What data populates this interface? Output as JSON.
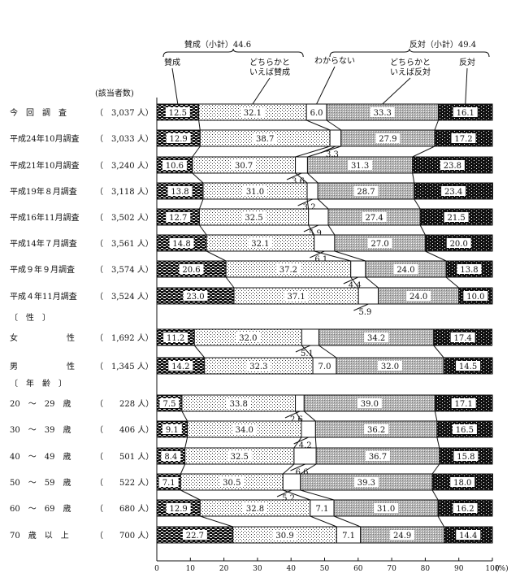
{
  "chart_data": {
    "type": "bar",
    "stacked": true,
    "orientation": "horizontal",
    "respondents_header": "(該当者数)",
    "group_labels": {
      "gender": "〔　性　〕",
      "age": "〔　年　齢　〕"
    },
    "x_tick_labels": [
      "0",
      "10",
      "20",
      "30",
      "40",
      "50",
      "60",
      "70",
      "80",
      "90",
      "100"
    ],
    "x_unit": "(%)",
    "xlim": [
      0,
      100
    ],
    "subtotals": {
      "approve": "賛成（小計）44.6",
      "oppose": "反対（小計）49.4"
    },
    "legend": [
      {
        "key": "approve",
        "text": "賛成"
      },
      {
        "key": "lean_approve",
        "text": "どちらかと\nいえば賛成"
      },
      {
        "key": "unsure",
        "text": "わからない"
      },
      {
        "key": "lean_oppose",
        "text": "どちらかと\nいえば反対"
      },
      {
        "key": "oppose",
        "text": "反対"
      }
    ],
    "series_names": [
      "賛成",
      "どちらかといえば賛成",
      "わからない",
      "どちらかといえば反対",
      "反対"
    ],
    "rows": [
      {
        "label": "今　回　調　査",
        "n": "（　3,037 人）",
        "values": [
          12.5,
          32.1,
          6.0,
          33.3,
          16.1
        ],
        "labels": [
          "12.5",
          "32.1",
          "6.0",
          "33.3",
          "16.1"
        ],
        "unsure_callout": "",
        "group": "survey"
      },
      {
        "label": "平成24年10月調査",
        "n": "（　3,033 人）",
        "values": [
          12.9,
          38.7,
          3.3,
          27.9,
          17.2
        ],
        "labels": [
          "12.9",
          "38.7",
          "3.3",
          "27.9",
          "17.2"
        ],
        "unsure_callout": "below",
        "group": "survey"
      },
      {
        "label": "平成21年10月調査",
        "n": "（　3,240 人）",
        "values": [
          10.6,
          30.7,
          3.6,
          31.3,
          23.8
        ],
        "labels": [
          "10.6",
          "30.7",
          "3.6",
          "31.3",
          "23.8"
        ],
        "unsure_callout": "below",
        "group": "survey"
      },
      {
        "label": "平成19年８月調査",
        "n": "（　3,118 人）",
        "values": [
          13.8,
          31.0,
          3.2,
          28.7,
          23.4
        ],
        "labels": [
          "13.8",
          "31.0",
          "3.2",
          "28.7",
          "23.4"
        ],
        "unsure_callout": "below",
        "group": "survey"
      },
      {
        "label": "平成16年11月調査",
        "n": "（　3,502 人）",
        "values": [
          12.7,
          32.5,
          5.9,
          27.4,
          21.5
        ],
        "labels": [
          "12.7",
          "32.5",
          "5.9",
          "27.4",
          "21.5"
        ],
        "unsure_callout": "below",
        "group": "survey"
      },
      {
        "label": "平成14年７月調査",
        "n": "（　3,561 人）",
        "values": [
          14.8,
          32.1,
          6.1,
          27.0,
          20.0
        ],
        "labels": [
          "14.8",
          "32.1",
          "6.1",
          "27.0",
          "20.0"
        ],
        "unsure_callout": "below",
        "group": "survey"
      },
      {
        "label": "平成９年９月調査",
        "n": "（　3,574 人）",
        "values": [
          20.6,
          37.2,
          4.4,
          24.0,
          13.8
        ],
        "labels": [
          "20.6",
          "37.2",
          "4.4",
          "24.0",
          "13.8"
        ],
        "unsure_callout": "below",
        "group": "survey"
      },
      {
        "label": "平成４年11月調査",
        "n": "（　3,524 人）",
        "values": [
          23.0,
          37.1,
          5.9,
          24.0,
          10.0
        ],
        "labels": [
          "23.0",
          "37.1",
          "5.9",
          "24.0",
          "10.0"
        ],
        "unsure_callout": "below",
        "group": "survey"
      },
      {
        "label": "女　　　　　　性",
        "n": "（　1,692 人）",
        "values": [
          11.2,
          32.0,
          5.1,
          34.2,
          17.4
        ],
        "labels": [
          "11.2",
          "32.0",
          "5.1",
          "34.2",
          "17.4"
        ],
        "unsure_callout": "below",
        "group": "gender"
      },
      {
        "label": "男　　　　　　性",
        "n": "（　1,345 人）",
        "values": [
          14.2,
          32.3,
          7.0,
          32.0,
          14.5
        ],
        "labels": [
          "14.2",
          "32.3",
          "7.0",
          "32.0",
          "14.5"
        ],
        "unsure_callout": "",
        "group": "gender"
      },
      {
        "label": "20　～　29　歳",
        "n": "（　　228 人）",
        "values": [
          7.5,
          33.8,
          2.6,
          39.0,
          17.1
        ],
        "labels": [
          "7.5",
          "33.8",
          "2.6",
          "39.0",
          "17.1"
        ],
        "unsure_callout": "below",
        "group": "age"
      },
      {
        "label": "30　～　39　歳",
        "n": "（　　406 人）",
        "values": [
          9.1,
          34.0,
          4.2,
          36.2,
          16.5
        ],
        "labels": [
          "9.1",
          "34.0",
          "4.2",
          "36.2",
          "16.5"
        ],
        "unsure_callout": "below",
        "group": "age"
      },
      {
        "label": "40　～　49　歳",
        "n": "（　　501 人）",
        "values": [
          8.4,
          32.5,
          6.6,
          36.7,
          15.8
        ],
        "labels": [
          "8.4",
          "32.5",
          "6.6",
          "36.7",
          "15.8"
        ],
        "unsure_callout": "below",
        "group": "age"
      },
      {
        "label": "50　～　59　歳",
        "n": "（　　522 人）",
        "values": [
          7.1,
          30.5,
          5.2,
          39.3,
          18.0
        ],
        "labels": [
          "7.1",
          "30.5",
          "5.2",
          "39.3",
          "18.0"
        ],
        "unsure_callout": "below",
        "group": "age"
      },
      {
        "label": "60　～　69　歳",
        "n": "（　　680 人）",
        "values": [
          12.9,
          32.8,
          7.1,
          31.0,
          16.2
        ],
        "labels": [
          "12.9",
          "32.8",
          "7.1",
          "31.0",
          "16.2"
        ],
        "unsure_callout": "",
        "group": "age"
      },
      {
        "label": "70　歳　以　上",
        "n": "（　　700 人）",
        "values": [
          22.7,
          30.9,
          7.1,
          24.9,
          14.4
        ],
        "labels": [
          "22.7",
          "30.9",
          "7.1",
          "24.9",
          "14.4"
        ],
        "unsure_callout": "",
        "group": "age"
      }
    ]
  }
}
